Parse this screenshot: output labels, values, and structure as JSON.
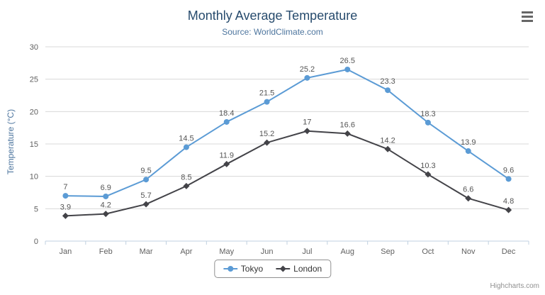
{
  "chart_data": {
    "type": "line",
    "title": "Monthly Average Temperature",
    "subtitle": "Source: WorldClimate.com",
    "categories": [
      "Jan",
      "Feb",
      "Mar",
      "Apr",
      "May",
      "Jun",
      "Jul",
      "Aug",
      "Sep",
      "Oct",
      "Nov",
      "Dec"
    ],
    "series": [
      {
        "name": "Tokyo",
        "color": "#5b9bd5",
        "marker": "circle",
        "values": [
          7,
          6.9,
          9.5,
          14.5,
          18.4,
          21.5,
          25.2,
          26.5,
          23.3,
          18.3,
          13.9,
          9.6
        ]
      },
      {
        "name": "London",
        "color": "#434348",
        "marker": "diamond",
        "values": [
          3.9,
          4.2,
          5.7,
          8.5,
          11.9,
          15.2,
          17,
          16.6,
          14.2,
          10.3,
          6.6,
          4.8
        ]
      }
    ],
    "xlabel": "",
    "ylabel": "Temperature (°C)",
    "ylim": [
      0,
      30
    ],
    "ytick_interval": 5,
    "grid": true,
    "legend_position": "bottom"
  },
  "colors": {
    "title": "#274b6d",
    "subtitle": "#4d759e",
    "axis_title": "#4d759e",
    "axis_labels": "#606060",
    "grid_line": "#d8d8d8",
    "axis_line": "#c0d0e0",
    "data_label": "#555555",
    "legend_border": "#909090",
    "credits": "#909090"
  },
  "icons": {
    "export_menu": "hamburger-icon"
  },
  "credits": {
    "label": "Highcharts.com"
  }
}
